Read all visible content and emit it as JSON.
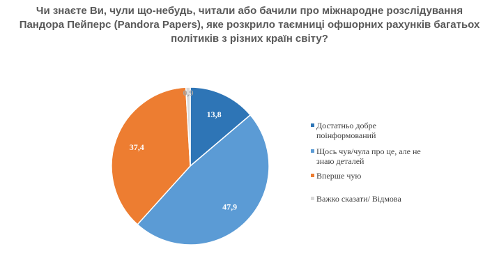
{
  "title_lines": [
    "Чи  знаєте Ви, чули що-небудь, читали або бачили про міжнародне розслідування",
    "Пандора Пейперс (Pandora Papers), яке розкрило таємниці офшорних рахунків багатьох",
    "політиків з різних країн світу?"
  ],
  "chart_data": {
    "type": "pie",
    "title": "Чи  знаєте Ви, чули що-небудь, читали або бачили про міжнародне розслідування Пандора Пейперс (Pandora Papers), яке розкрило таємниці офшорних рахунків багатьох політиків з різних країн світу?",
    "slices": [
      {
        "label": "Достатньо добре поінформований",
        "value": 13.8,
        "value_label": "13,8",
        "color": "#2e75b6",
        "label_color": "#ffffff"
      },
      {
        "label": "Щось чув/чула про це, але не знаю деталей",
        "value": 47.9,
        "value_label": "47,9",
        "color": "#5b9bd5",
        "label_color": "#ffffff"
      },
      {
        "label": "Вперше чую",
        "value": 37.4,
        "value_label": "37,4",
        "color": "#ed7d31",
        "label_color": "#ffffff"
      },
      {
        "label": "Важко сказати/ Відмова",
        "value": 0.9,
        "value_label": "0,9",
        "color": "#d9d9d9",
        "label_color": "#a6a6a6"
      }
    ],
    "start_angle_deg": 0,
    "direction": "clockwise",
    "legend_position": "right"
  }
}
